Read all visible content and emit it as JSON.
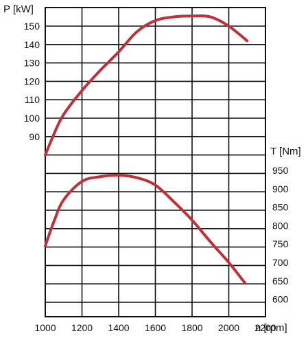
{
  "chart_data": {
    "type": "line",
    "xlabel": "n [rpm]",
    "xlim": [
      1000,
      2200
    ],
    "x_ticks": [
      "1000",
      "1200",
      "1400",
      "1600",
      "1800",
      "2000",
      "2200"
    ],
    "y_left": {
      "label": "P [kW]",
      "ticks": [
        "90",
        "100",
        "110",
        "120",
        "130",
        "140",
        "150"
      ]
    },
    "y_right": {
      "label": "T [Nm]",
      "ticks": [
        "950",
        "900",
        "850",
        "800",
        "750",
        "700",
        "650",
        "600"
      ]
    },
    "grid": true,
    "color": "#c0303a",
    "series": [
      {
        "axis": "left",
        "x": [
          1000,
          1050,
          1100,
          1200,
          1300,
          1400,
          1500,
          1600,
          1700,
          1800,
          1900,
          2000,
          2100
        ],
        "values": [
          80,
          92,
          102,
          115,
          126,
          136,
          147,
          153,
          155,
          155.5,
          155,
          150,
          142
        ]
      },
      {
        "axis": "right",
        "x": [
          1000,
          1050,
          1100,
          1200,
          1300,
          1400,
          1500,
          1600,
          1700,
          1800,
          1900,
          2000,
          2090
        ],
        "values": [
          745,
          815,
          870,
          920,
          933,
          937,
          930,
          910,
          865,
          815,
          756,
          700,
          643
        ]
      }
    ]
  }
}
